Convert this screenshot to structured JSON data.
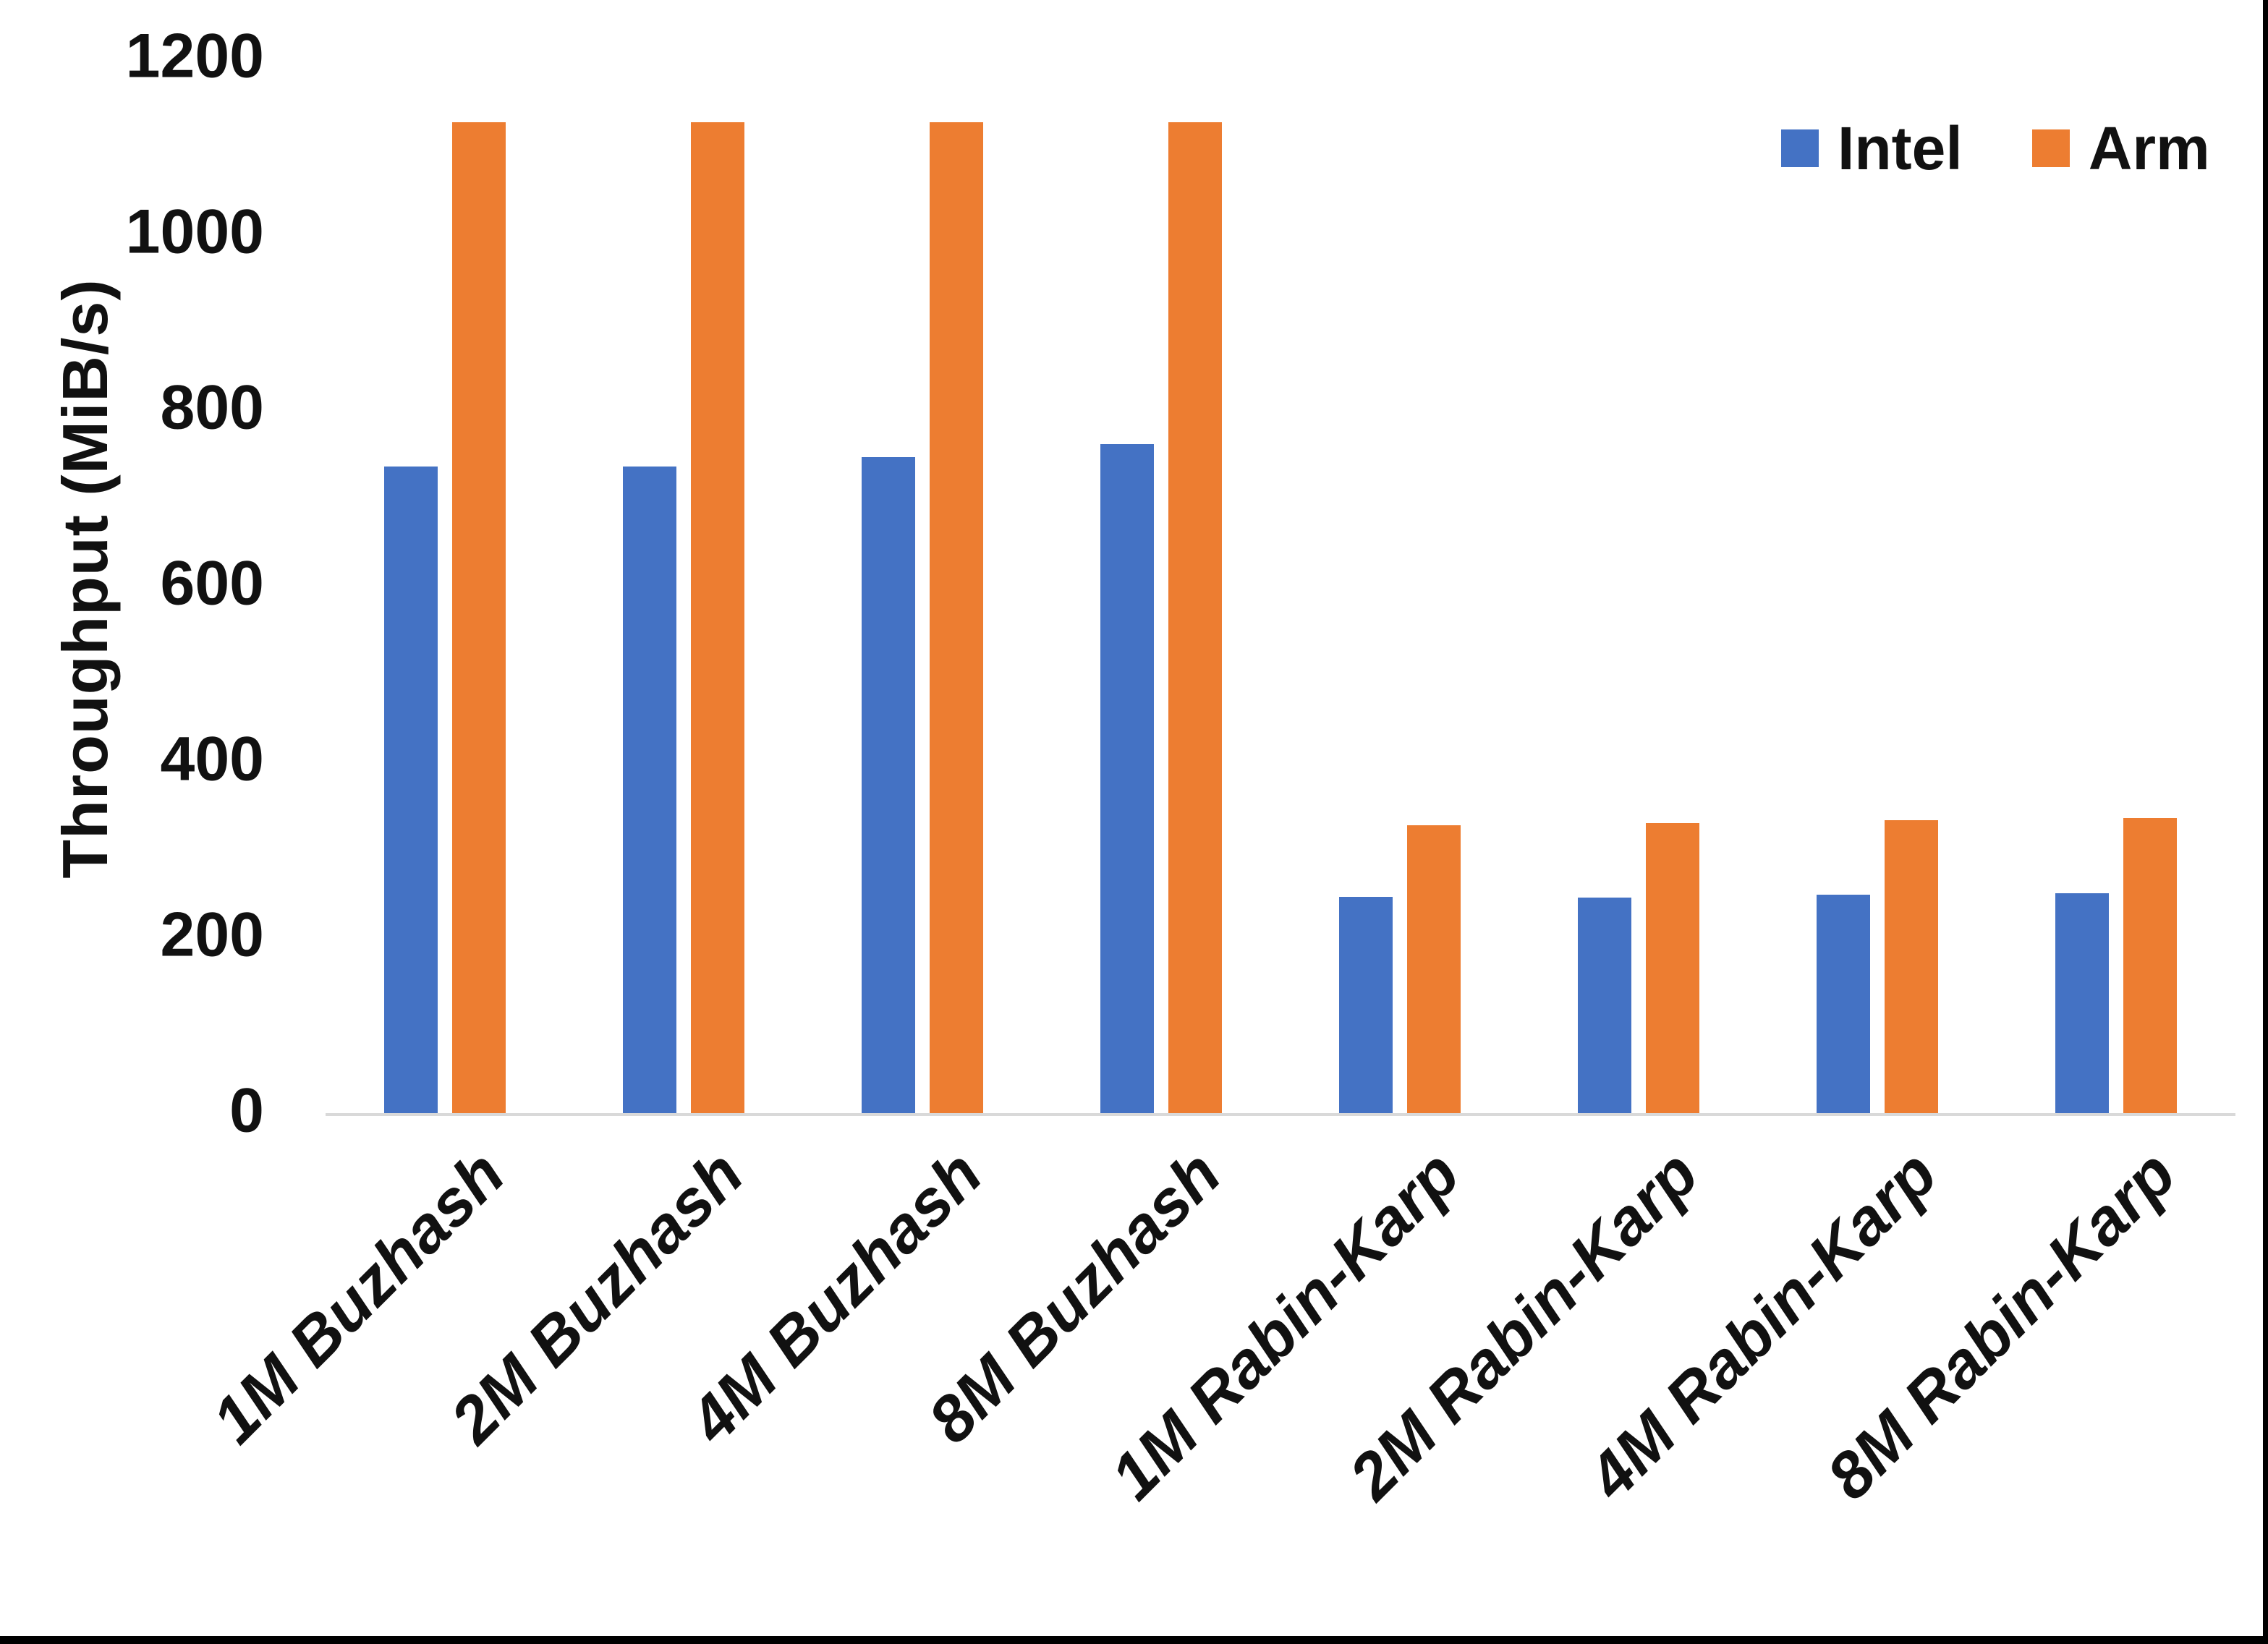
{
  "chart_data": {
    "type": "bar",
    "title": "",
    "xlabel": "",
    "ylabel": "Throughput (MiB/s)",
    "ylim": [
      0,
      1200
    ],
    "yticks": [
      0,
      200,
      400,
      600,
      800,
      1000,
      1200
    ],
    "grid": false,
    "legend_position": "top-right",
    "axis_line_color": "#d9d9d9",
    "categories": [
      "1M Buzhash",
      "2M Buzhash",
      "4M Buzhash",
      "8M Buzhash",
      "1M Rabin-Karp",
      "2M Rabin-Karp",
      "4M Rabin-Karp",
      "8M Rabin-Karp"
    ],
    "series": [
      {
        "name": "Intel",
        "color": "#4472C4",
        "values": [
          737,
          737,
          747,
          762,
          247,
          246,
          249,
          251
        ]
      },
      {
        "name": "Arm",
        "color": "#ED7D31",
        "values": [
          1128,
          1128,
          1128,
          1128,
          328,
          331,
          334,
          337
        ]
      }
    ]
  }
}
